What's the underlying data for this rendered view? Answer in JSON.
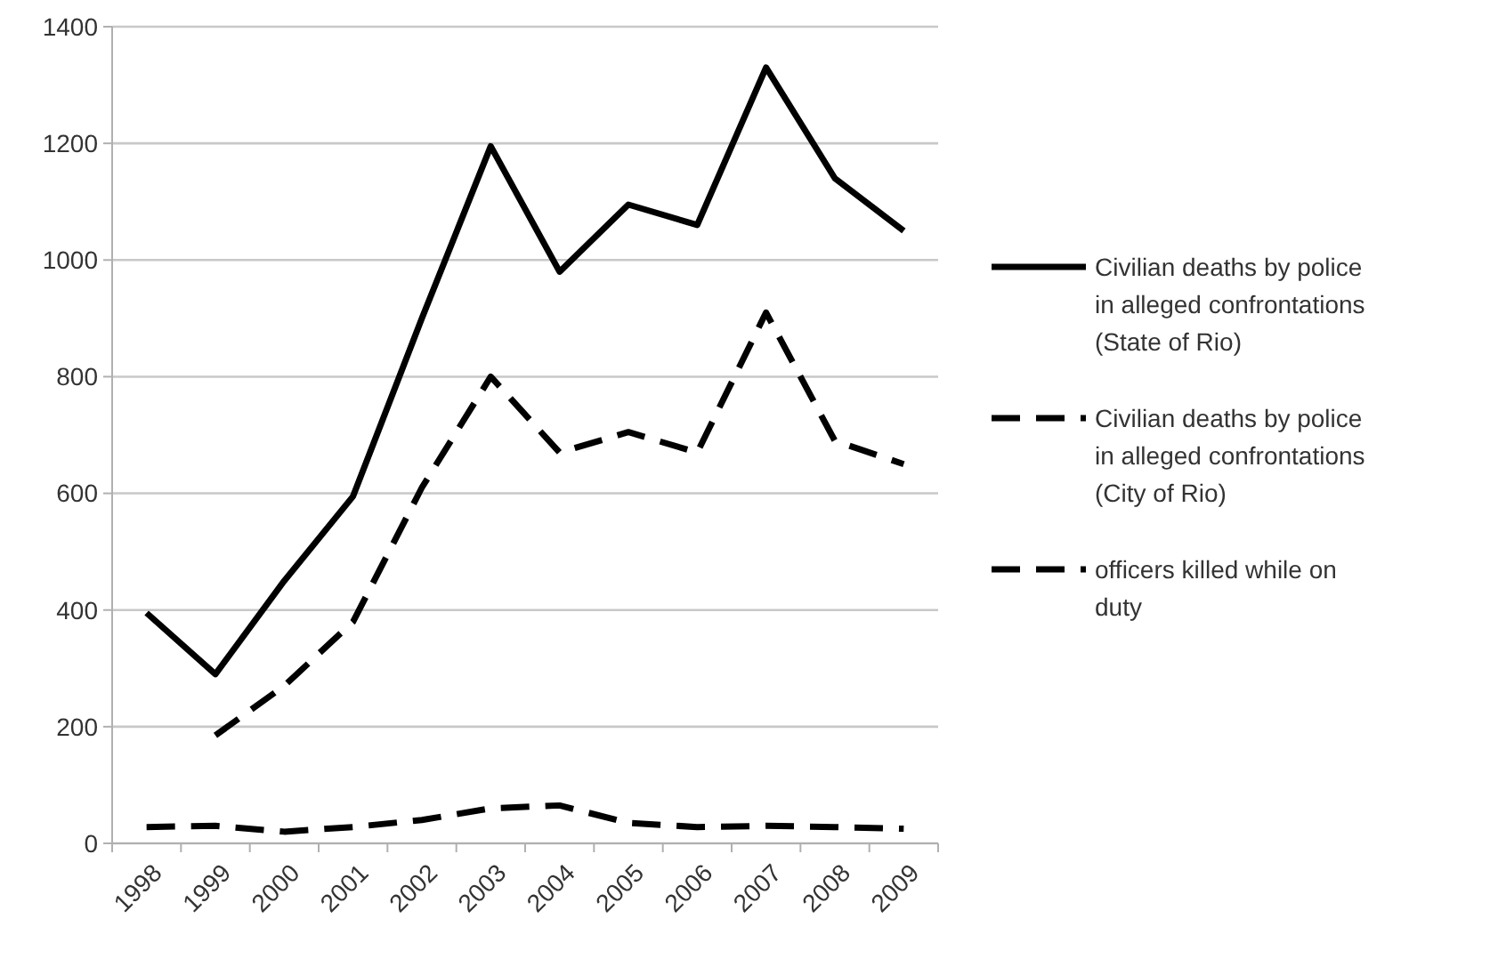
{
  "chart_data": {
    "type": "line",
    "categories": [
      "1998",
      "1999",
      "2000",
      "2001",
      "2002",
      "2003",
      "2004",
      "2005",
      "2006",
      "2007",
      "2008",
      "2009"
    ],
    "series": [
      {
        "name": "Civilian deaths by police in alleged confrontations (State of Rio)",
        "color": "#000000",
        "line_style": "solid",
        "values": [
          395,
          290,
          450,
          595,
          900,
          1195,
          980,
          1095,
          1060,
          1330,
          1140,
          1050
        ]
      },
      {
        "name": "Civilian deaths by police in alleged confrontations (City of Rio)",
        "color": "#000000",
        "line_style": "dashed",
        "values": [
          null,
          185,
          270,
          380,
          610,
          800,
          670,
          705,
          670,
          910,
          690,
          650
        ]
      },
      {
        "name": "officers killed while on duty",
        "color": "#000000",
        "line_style": "dashed",
        "values": [
          28,
          30,
          20,
          28,
          40,
          60,
          65,
          35,
          28,
          30,
          28,
          25
        ]
      }
    ],
    "ylim": [
      0,
      1400
    ],
    "yticks": [
      0,
      200,
      400,
      600,
      800,
      1000,
      1200,
      1400
    ],
    "grid": "y",
    "legend": "right"
  }
}
